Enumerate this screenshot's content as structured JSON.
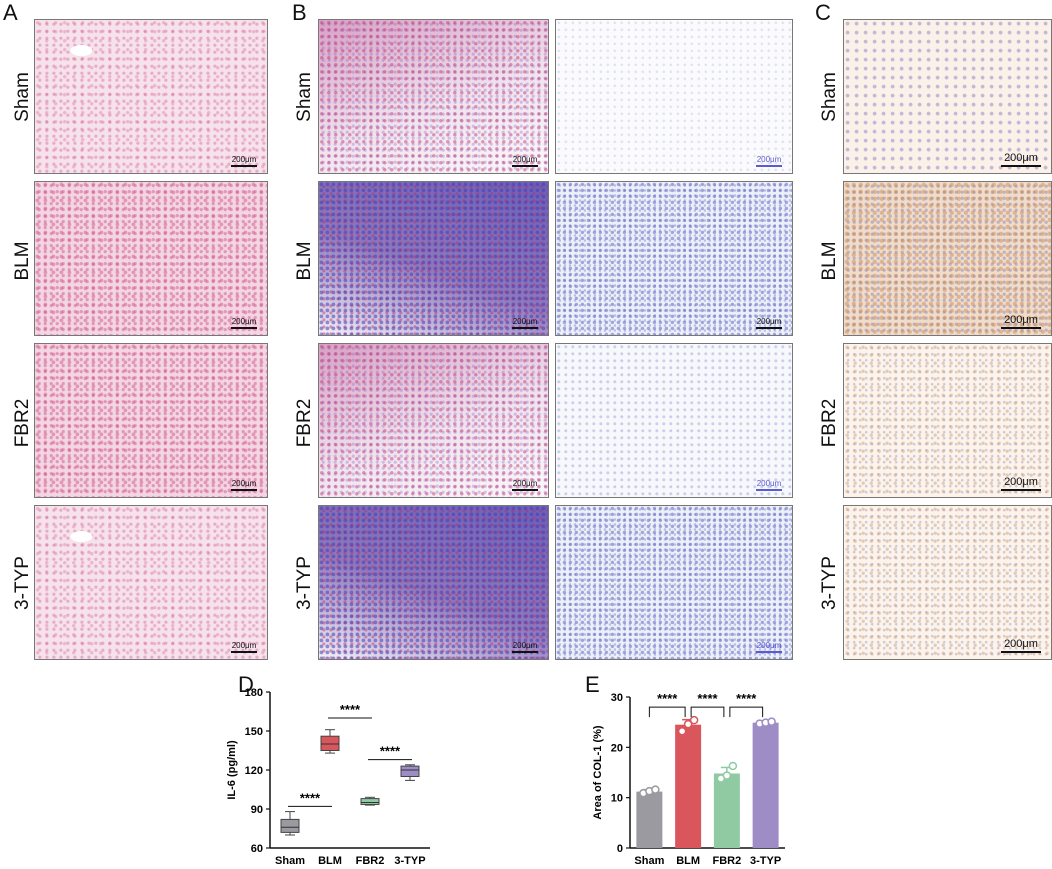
{
  "panels": {
    "A": {
      "letter": "A",
      "rows": [
        "Sham",
        "BLM",
        "FBR2",
        "3-TYP"
      ],
      "scale": "200μm"
    },
    "B": {
      "letter": "B",
      "rows": [
        "Sham",
        "BLM",
        "FBR2",
        "3-TYP"
      ],
      "scale": "200μm"
    },
    "C": {
      "letter": "C",
      "rows": [
        "Sham",
        "BLM",
        "FBR2",
        "3-TYP"
      ],
      "scale": "200μm"
    },
    "D": {
      "letter": "D"
    },
    "E": {
      "letter": "E"
    }
  },
  "chart_data": [
    {
      "panel": "D",
      "type": "box",
      "categories": [
        "Sham",
        "BLM",
        "FBR2",
        "3-TYP"
      ],
      "ylabel": "IL-6 (pg/ml)",
      "ylim": [
        60,
        180
      ],
      "yticks": [
        60,
        90,
        120,
        150,
        180
      ],
      "boxes": [
        {
          "min": 70,
          "q1": 72,
          "median": 76,
          "q3": 82,
          "max": 88
        },
        {
          "min": 133,
          "q1": 135,
          "median": 140,
          "q3": 146,
          "max": 151
        },
        {
          "min": 93,
          "q1": 93.5,
          "median": 95,
          "q3": 98,
          "max": 99
        },
        {
          "min": 112,
          "q1": 115,
          "median": 120,
          "q3": 123,
          "max": 124
        }
      ],
      "colors": [
        "#9a9aa0",
        "#d9575c",
        "#8fcaa3",
        "#9d8cc6"
      ],
      "significance": [
        {
          "from": 0,
          "to": 1,
          "label": "****",
          "y": 92
        },
        {
          "from": 1,
          "to": 2,
          "label": "****",
          "y": 160
        },
        {
          "from": 2,
          "to": 3,
          "label": "****",
          "y": 128
        }
      ]
    },
    {
      "panel": "E",
      "type": "bar",
      "categories": [
        "Sham",
        "BLM",
        "FBR2",
        "3-TYP"
      ],
      "ylabel": "Area of COL-1 (%)",
      "ylim": [
        0,
        30
      ],
      "yticks": [
        0,
        10,
        20,
        30
      ],
      "values": [
        11.2,
        24.5,
        14.8,
        24.9
      ],
      "errors": [
        0.4,
        1.0,
        1.2,
        0.3
      ],
      "points": [
        [
          10.9,
          11.3,
          11.6
        ],
        [
          23.2,
          24.6,
          25.4
        ],
        [
          13.8,
          14.4,
          16.3
        ],
        [
          24.7,
          24.9,
          25.1
        ]
      ],
      "colors": [
        "#9a9aa0",
        "#d9575c",
        "#8fcaa3",
        "#9d8cc6"
      ],
      "significance": [
        {
          "from": 0,
          "to": 1,
          "label": "****"
        },
        {
          "from": 1,
          "to": 2,
          "label": "****"
        },
        {
          "from": 2,
          "to": 3,
          "label": "****"
        }
      ]
    }
  ]
}
